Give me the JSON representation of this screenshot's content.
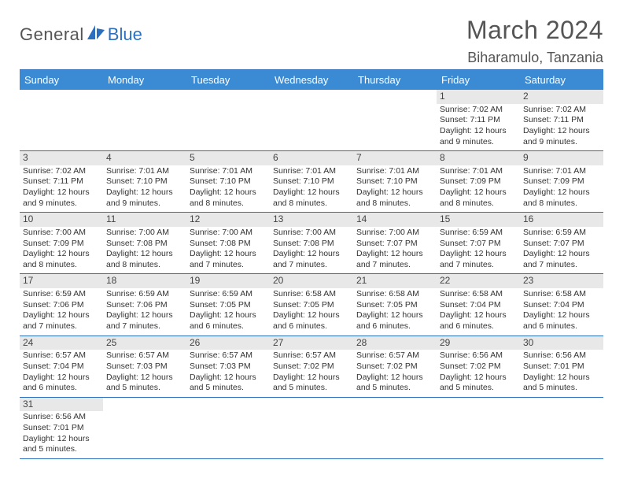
{
  "logo": {
    "text1": "General",
    "text2": "Blue"
  },
  "title": "March 2024",
  "location": "Biharamulo, Tanzania",
  "colors": {
    "header_bg": "#3b8bd4",
    "border": "#2d6fbf",
    "daynum_bg": "#e8e8e8",
    "text": "#333333"
  },
  "day_headers": [
    "Sunday",
    "Monday",
    "Tuesday",
    "Wednesday",
    "Thursday",
    "Friday",
    "Saturday"
  ],
  "weeks": [
    [
      null,
      null,
      null,
      null,
      null,
      {
        "n": "1",
        "sr": "Sunrise: 7:02 AM",
        "ss": "Sunset: 7:11 PM",
        "d1": "Daylight: 12 hours",
        "d2": "and 9 minutes."
      },
      {
        "n": "2",
        "sr": "Sunrise: 7:02 AM",
        "ss": "Sunset: 7:11 PM",
        "d1": "Daylight: 12 hours",
        "d2": "and 9 minutes."
      }
    ],
    [
      {
        "n": "3",
        "sr": "Sunrise: 7:02 AM",
        "ss": "Sunset: 7:11 PM",
        "d1": "Daylight: 12 hours",
        "d2": "and 9 minutes."
      },
      {
        "n": "4",
        "sr": "Sunrise: 7:01 AM",
        "ss": "Sunset: 7:10 PM",
        "d1": "Daylight: 12 hours",
        "d2": "and 9 minutes."
      },
      {
        "n": "5",
        "sr": "Sunrise: 7:01 AM",
        "ss": "Sunset: 7:10 PM",
        "d1": "Daylight: 12 hours",
        "d2": "and 8 minutes."
      },
      {
        "n": "6",
        "sr": "Sunrise: 7:01 AM",
        "ss": "Sunset: 7:10 PM",
        "d1": "Daylight: 12 hours",
        "d2": "and 8 minutes."
      },
      {
        "n": "7",
        "sr": "Sunrise: 7:01 AM",
        "ss": "Sunset: 7:10 PM",
        "d1": "Daylight: 12 hours",
        "d2": "and 8 minutes."
      },
      {
        "n": "8",
        "sr": "Sunrise: 7:01 AM",
        "ss": "Sunset: 7:09 PM",
        "d1": "Daylight: 12 hours",
        "d2": "and 8 minutes."
      },
      {
        "n": "9",
        "sr": "Sunrise: 7:01 AM",
        "ss": "Sunset: 7:09 PM",
        "d1": "Daylight: 12 hours",
        "d2": "and 8 minutes."
      }
    ],
    [
      {
        "n": "10",
        "sr": "Sunrise: 7:00 AM",
        "ss": "Sunset: 7:09 PM",
        "d1": "Daylight: 12 hours",
        "d2": "and 8 minutes."
      },
      {
        "n": "11",
        "sr": "Sunrise: 7:00 AM",
        "ss": "Sunset: 7:08 PM",
        "d1": "Daylight: 12 hours",
        "d2": "and 8 minutes."
      },
      {
        "n": "12",
        "sr": "Sunrise: 7:00 AM",
        "ss": "Sunset: 7:08 PM",
        "d1": "Daylight: 12 hours",
        "d2": "and 7 minutes."
      },
      {
        "n": "13",
        "sr": "Sunrise: 7:00 AM",
        "ss": "Sunset: 7:08 PM",
        "d1": "Daylight: 12 hours",
        "d2": "and 7 minutes."
      },
      {
        "n": "14",
        "sr": "Sunrise: 7:00 AM",
        "ss": "Sunset: 7:07 PM",
        "d1": "Daylight: 12 hours",
        "d2": "and 7 minutes."
      },
      {
        "n": "15",
        "sr": "Sunrise: 6:59 AM",
        "ss": "Sunset: 7:07 PM",
        "d1": "Daylight: 12 hours",
        "d2": "and 7 minutes."
      },
      {
        "n": "16",
        "sr": "Sunrise: 6:59 AM",
        "ss": "Sunset: 7:07 PM",
        "d1": "Daylight: 12 hours",
        "d2": "and 7 minutes."
      }
    ],
    [
      {
        "n": "17",
        "sr": "Sunrise: 6:59 AM",
        "ss": "Sunset: 7:06 PM",
        "d1": "Daylight: 12 hours",
        "d2": "and 7 minutes."
      },
      {
        "n": "18",
        "sr": "Sunrise: 6:59 AM",
        "ss": "Sunset: 7:06 PM",
        "d1": "Daylight: 12 hours",
        "d2": "and 7 minutes."
      },
      {
        "n": "19",
        "sr": "Sunrise: 6:59 AM",
        "ss": "Sunset: 7:05 PM",
        "d1": "Daylight: 12 hours",
        "d2": "and 6 minutes."
      },
      {
        "n": "20",
        "sr": "Sunrise: 6:58 AM",
        "ss": "Sunset: 7:05 PM",
        "d1": "Daylight: 12 hours",
        "d2": "and 6 minutes."
      },
      {
        "n": "21",
        "sr": "Sunrise: 6:58 AM",
        "ss": "Sunset: 7:05 PM",
        "d1": "Daylight: 12 hours",
        "d2": "and 6 minutes."
      },
      {
        "n": "22",
        "sr": "Sunrise: 6:58 AM",
        "ss": "Sunset: 7:04 PM",
        "d1": "Daylight: 12 hours",
        "d2": "and 6 minutes."
      },
      {
        "n": "23",
        "sr": "Sunrise: 6:58 AM",
        "ss": "Sunset: 7:04 PM",
        "d1": "Daylight: 12 hours",
        "d2": "and 6 minutes."
      }
    ],
    [
      {
        "n": "24",
        "sr": "Sunrise: 6:57 AM",
        "ss": "Sunset: 7:04 PM",
        "d1": "Daylight: 12 hours",
        "d2": "and 6 minutes."
      },
      {
        "n": "25",
        "sr": "Sunrise: 6:57 AM",
        "ss": "Sunset: 7:03 PM",
        "d1": "Daylight: 12 hours",
        "d2": "and 5 minutes."
      },
      {
        "n": "26",
        "sr": "Sunrise: 6:57 AM",
        "ss": "Sunset: 7:03 PM",
        "d1": "Daylight: 12 hours",
        "d2": "and 5 minutes."
      },
      {
        "n": "27",
        "sr": "Sunrise: 6:57 AM",
        "ss": "Sunset: 7:02 PM",
        "d1": "Daylight: 12 hours",
        "d2": "and 5 minutes."
      },
      {
        "n": "28",
        "sr": "Sunrise: 6:57 AM",
        "ss": "Sunset: 7:02 PM",
        "d1": "Daylight: 12 hours",
        "d2": "and 5 minutes."
      },
      {
        "n": "29",
        "sr": "Sunrise: 6:56 AM",
        "ss": "Sunset: 7:02 PM",
        "d1": "Daylight: 12 hours",
        "d2": "and 5 minutes."
      },
      {
        "n": "30",
        "sr": "Sunrise: 6:56 AM",
        "ss": "Sunset: 7:01 PM",
        "d1": "Daylight: 12 hours",
        "d2": "and 5 minutes."
      }
    ],
    [
      {
        "n": "31",
        "sr": "Sunrise: 6:56 AM",
        "ss": "Sunset: 7:01 PM",
        "d1": "Daylight: 12 hours",
        "d2": "and 5 minutes."
      },
      null,
      null,
      null,
      null,
      null,
      null
    ]
  ]
}
